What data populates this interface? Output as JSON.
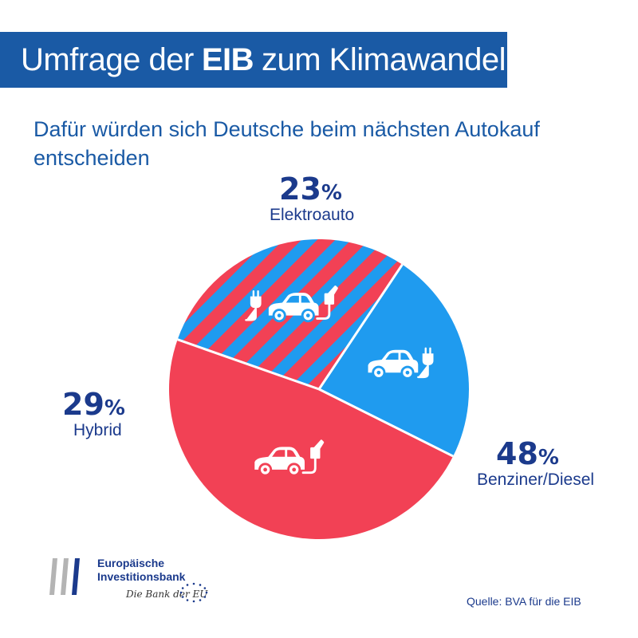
{
  "header": {
    "title_prefix": "Umfrage der",
    "title_bold": "EIB",
    "title_suffix": "zum Klimawandel"
  },
  "subtitle": "Dafür würden sich Deutsche beim nächsten Autokauf entscheiden",
  "chart_data": {
    "type": "pie",
    "start_angle_deg": -56.25,
    "slices": [
      {
        "label": "Elektroauto",
        "value": 23,
        "display": "23",
        "unit": "%",
        "color": "#1f9bef",
        "pattern": "solid",
        "icon": "electric-car-icon"
      },
      {
        "label": "Benziner/Diesel",
        "value": 48,
        "display": "48",
        "unit": "%",
        "color": "#f24155",
        "pattern": "solid",
        "icon": "fuel-car-icon"
      },
      {
        "label": "Hybrid",
        "value": 29,
        "display": "29",
        "unit": "%",
        "color": "#f24155",
        "stripe_color": "#1f9bef",
        "pattern": "diagonal-stripes",
        "icon": "hybrid-car-icon"
      }
    ]
  },
  "logo": {
    "line1": "Europäische",
    "line2": "Investitionsbank",
    "tagline": "Die Bank der EU"
  },
  "source": "Quelle: BVA für die EIB",
  "colors": {
    "brand": "#1a5aa5",
    "label": "#1b3a8c",
    "electric": "#1f9bef",
    "fossil": "#f24155"
  }
}
